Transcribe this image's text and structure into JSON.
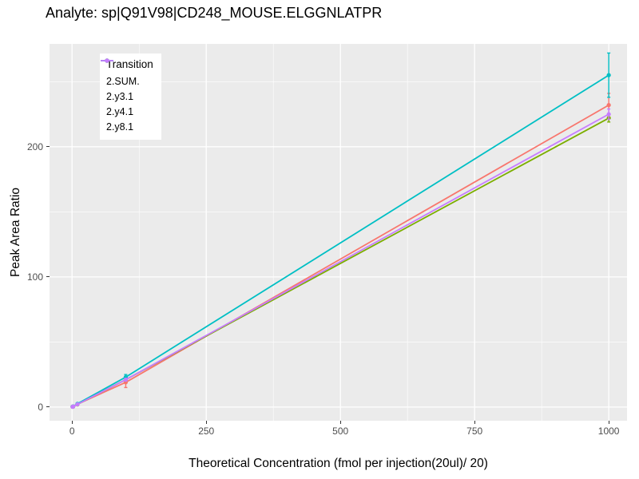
{
  "title": "Analyte: sp|Q91V98|CD248_MOUSE.ELGGNLATPR",
  "chart_data": {
    "type": "line",
    "title": "Analyte: sp|Q91V98|CD248_MOUSE.ELGGNLATPR",
    "xlabel": "Theoretical Concentration (fmol per injection(20ul)/ 20)",
    "ylabel": "Peak Area Ratio",
    "xlim": [
      -42,
      1034
    ],
    "ylim": [
      -10.5,
      279
    ],
    "x_ticks": [
      0,
      250,
      500,
      750,
      1000
    ],
    "y_ticks": [
      0,
      100,
      200
    ],
    "x_minor_gridlines": [
      125,
      375,
      625,
      875
    ],
    "y_minor_gridlines": [
      50,
      150,
      250
    ],
    "grid": true,
    "panel_bg": "#EBEBEB",
    "grid_color": "#FFFFFF",
    "legend": {
      "title": "Transition",
      "position": "top-left-inside"
    },
    "series": [
      {
        "name": "2.SUM.",
        "color": "#F8766D",
        "x": [
          1,
          2,
          10,
          100,
          1000
        ],
        "y": [
          0.3,
          0.5,
          2.2,
          19,
          232
        ],
        "yerr": [
          0,
          0,
          0,
          4,
          9
        ]
      },
      {
        "name": "2.y3.1",
        "color": "#7CAE00",
        "x": [
          1,
          2,
          10,
          100,
          1000
        ],
        "y": [
          0.2,
          0.4,
          2.0,
          21,
          222
        ],
        "yerr": [
          0,
          0,
          0,
          1,
          3
        ]
      },
      {
        "name": "2.y4.1",
        "color": "#00BFC4",
        "x": [
          1,
          2,
          10,
          100,
          1000
        ],
        "y": [
          0.3,
          0.5,
          2.5,
          23,
          255
        ],
        "yerr": [
          0,
          0,
          0,
          2,
          17
        ]
      },
      {
        "name": "2.y8.1",
        "color": "#C77CFF",
        "x": [
          1,
          2,
          10,
          100,
          1000
        ],
        "y": [
          0.2,
          0.4,
          2.1,
          21,
          225
        ],
        "yerr": [
          0,
          0,
          0,
          1,
          4
        ]
      }
    ]
  }
}
